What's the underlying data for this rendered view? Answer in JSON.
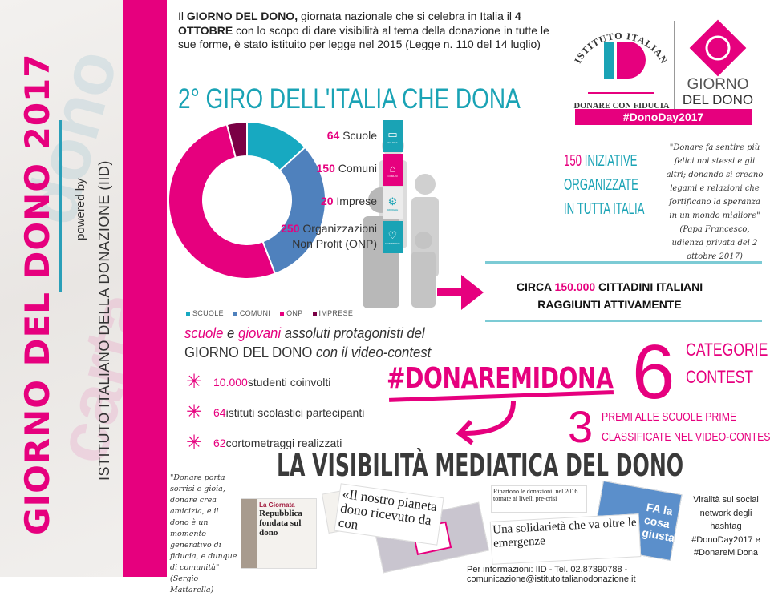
{
  "sidebar": {
    "title": "GIORNO DEL DONO 2017",
    "powered_by": "powered by",
    "institute": "ISTITUTO ITALIANO DELLA DONAZIONE (IID)"
  },
  "intro": {
    "p1": "Il ",
    "b1": "GIORNO DEL DONO,",
    "p2": " giornata nazionale che si celebra in Italia il ",
    "b2": "4 OTTOBRE",
    "p3": " con lo scopo di dare visibilità al tema della donazione in tutte le sue forme",
    "b3": ",",
    "p4": " è stato istituito per legge nel 2015 (Legge n. 110 del 14 luglio)"
  },
  "logo": {
    "arc": "ISTITUTO ITALIANO DONAZIONE",
    "mark": "ID",
    "tagline": "DONARE CON FIDUCIA",
    "giorno": "GIORNO",
    "deldono": "DEL DONO",
    "hashtag": "#DonoDay2017"
  },
  "giro_title": "2° GIRO DELL'ITALIA CHE DONA",
  "chart_data": {
    "type": "pie",
    "donut": true,
    "categories": [
      "SCUOLE",
      "COMUNI",
      "ONP",
      "IMPRESE"
    ],
    "values": [
      64,
      150,
      250,
      20
    ],
    "colors": [
      "#17a9c1",
      "#4f81bd",
      "#e6007e",
      "#7a0045"
    ],
    "legend": "bottom"
  },
  "stats": [
    {
      "num": "64",
      "label": "Scuole",
      "icon": "book-icon",
      "icon_caption": "SCUOLE",
      "color": "#1aa3b5"
    },
    {
      "num": "150",
      "label": "Comuni",
      "icon": "building-icon",
      "icon_caption": "COMUNI",
      "color": "#e6007e"
    },
    {
      "num": "20",
      "label": "Imprese",
      "icon": "gears-icon",
      "icon_caption": "IMPRESE",
      "color": "#e8e8e8"
    },
    {
      "num": "250",
      "label": "Organizzazioni",
      "label2": "Non Profit (ONP)",
      "icon": "heart-icon",
      "icon_caption": "NON PROFIT",
      "color": "#1aa3b5"
    }
  ],
  "iniziative": {
    "num": "150",
    "l1": "INIZIATIVE",
    "l2": "ORGANIZZATE",
    "l3": "IN TUTTA ITALIA"
  },
  "quote_papa": {
    "text": "\"Donare fa sentire più felici noi stessi e gli altri; donando si creano legami e relazioni che fortificano la speranza in un mondo migliore\"",
    "author": "(Papa Francesco, udienza privata del 2 ottobre 2017)"
  },
  "cittadini": {
    "pre": "CIRCA ",
    "num": "150.000",
    "post": " CITTADINI ITALIANI",
    "l2": "RAGGIUNTI ATTIVAMENTE"
  },
  "scuole_giovani": {
    "w1": "scuole",
    "w2": " e ",
    "w3": "giovani",
    "w4": " assoluti protagonisti del",
    "l2a": "GIORNO DEL DONO",
    "l2b": " con il video-contest"
  },
  "school_stats": [
    {
      "num": "10.000",
      "label": " studenti coinvolti"
    },
    {
      "num": "64",
      "label": " istituti scolastici partecipanti"
    },
    {
      "num": "62",
      "label": " cortometraggi realizzati"
    }
  ],
  "contest": {
    "hashtag": "#DONAREMIDONA",
    "six": "6",
    "cat1": "CATEGORIE",
    "cat2": "CONTEST",
    "three": "3",
    "premi1": "PREMI ALLE SCUOLE PRIME",
    "premi2": "CLASSIFICATE NEL VIDEO-CONTEST"
  },
  "visibilita": "LA VISIBILITÀ MEDIATICA DEL DONO",
  "quote_mattarella": {
    "text": "\"Donare porta sorrisi e gioia, donare crea amicizia, e il dono è un momento generativo di fiducia, e dunque di comunità\"",
    "author": "(Sergio Mattarella)"
  },
  "clips": {
    "c1_head": "La Giornata",
    "c1_title": "Repubblica fondata sul dono",
    "c2": "«Il nostro pianeta dono ricevuto da con",
    "c3_head": "Ripartono le donazioni: nel 2016 tornate ai livelli pre-crisi",
    "c4": "Una solidarietà che va oltre le emergenze",
    "c5": "FA la cosa giusta"
  },
  "viral": "Viralità sui social network degli hashtag #DonoDay2017 e #DonareMiDona",
  "footer": "Per informazioni: IID - Tel. 02.87390788 - comunicazione@istitutoitalianodonazione.it"
}
